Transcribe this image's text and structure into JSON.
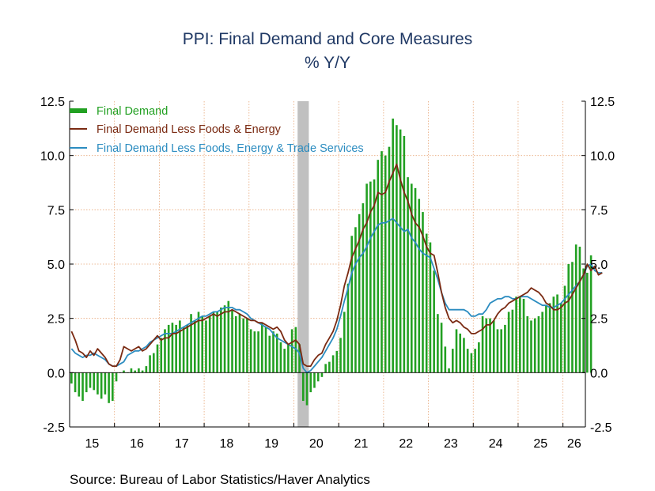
{
  "chart_data": {
    "type": "bar",
    "title": "PPI: Final Demand and Core Measures",
    "subtitle": "% Y/Y",
    "source": "Source:  Bureau of Labor Statistics/Haver Analytics",
    "ylim": [
      -2.5,
      12.5
    ],
    "yticks": [
      "-2.5",
      "0.0",
      "2.5",
      "5.0",
      "7.5",
      "10.0",
      "12.5"
    ],
    "ytick_values": [
      -2.5,
      0,
      2.5,
      5,
      7.5,
      10,
      12.5
    ],
    "x_tick_labels": [
      "15",
      "16",
      "17",
      "18",
      "19",
      "20",
      "21",
      "22",
      "23",
      "24",
      "25",
      "26"
    ],
    "x_start": "2015-01",
    "recession_shade": [
      "2020-02",
      "2020-04"
    ],
    "grid": true,
    "legend_position": "top-left",
    "colors": {
      "final_demand": "#22a022",
      "less_food_energy": "#7a2a12",
      "less_food_energy_trade": "#2b8cc0",
      "grid": "#e8a87a",
      "recession": "#c0c0c0",
      "title": "#1f3864"
    },
    "series": [
      {
        "name": "Final Demand",
        "kind": "bar",
        "values": [
          -0.5,
          -0.9,
          -1.1,
          -1.3,
          -0.9,
          -0.7,
          -0.8,
          -1.0,
          -1.2,
          -1.0,
          -1.4,
          -1.3,
          -0.4,
          0.0,
          0.1,
          0.0,
          0.2,
          0.1,
          0.2,
          0.1,
          0.3,
          0.8,
          0.9,
          1.3,
          1.6,
          2.0,
          2.2,
          2.3,
          2.2,
          2.4,
          2.1,
          2.2,
          2.7,
          2.4,
          2.8,
          2.6,
          2.4,
          2.6,
          2.8,
          2.8,
          3.0,
          3.1,
          3.3,
          2.9,
          2.6,
          2.7,
          2.5,
          2.5,
          2.0,
          1.9,
          1.9,
          2.3,
          2.1,
          1.7,
          1.9,
          1.8,
          1.4,
          1.1,
          1.3,
          2.0,
          2.1,
          1.3,
          -1.3,
          -1.5,
          -0.9,
          -0.7,
          -0.4,
          -0.2,
          0.4,
          0.5,
          0.8,
          1.0,
          1.6,
          2.8,
          4.1,
          6.3,
          6.7,
          7.3,
          7.8,
          8.7,
          8.8,
          8.9,
          9.8,
          10.2,
          10.0,
          10.4,
          11.7,
          11.4,
          11.2,
          10.9,
          9.0,
          8.7,
          8.5,
          8.0,
          7.4,
          6.4,
          6.0,
          4.7,
          2.7,
          2.3,
          1.2,
          0.2,
          1.1,
          2.0,
          1.8,
          1.6,
          1.1,
          0.9,
          1.1,
          1.4,
          2.6,
          2.5,
          2.5,
          2.4,
          2.0,
          2.0,
          2.2,
          2.8,
          2.9,
          3.5,
          3.5,
          3.4,
          2.6,
          2.4,
          2.5,
          2.6,
          2.8,
          3.1,
          3.2,
          3.5,
          3.6,
          3.2,
          4.0,
          5.0,
          5.1,
          5.9,
          5.8,
          4.8,
          4.6,
          5.4
        ]
      },
      {
        "name": "Final Demand Less Foods & Energy",
        "kind": "line",
        "values": [
          1.9,
          1.5,
          1.0,
          0.9,
          0.7,
          1.0,
          0.8,
          1.1,
          0.9,
          0.7,
          0.4,
          0.3,
          0.3,
          0.6,
          1.2,
          1.1,
          1.0,
          1.1,
          1.2,
          1.0,
          1.1,
          1.3,
          1.5,
          1.7,
          1.5,
          1.6,
          1.6,
          1.8,
          1.8,
          1.9,
          2.0,
          2.1,
          2.2,
          2.3,
          2.4,
          2.4,
          2.5,
          2.6,
          2.7,
          2.6,
          2.7,
          2.8,
          2.8,
          2.9,
          2.8,
          2.7,
          2.6,
          2.5,
          2.4,
          2.4,
          2.3,
          2.3,
          2.2,
          2.1,
          2.0,
          2.1,
          1.9,
          1.5,
          1.3,
          1.4,
          1.5,
          1.3,
          0.4,
          0.3,
          0.3,
          0.6,
          0.8,
          0.9,
          1.3,
          1.6,
          1.9,
          2.4,
          3.1,
          4.0,
          4.6,
          5.3,
          5.7,
          6.1,
          6.6,
          6.9,
          7.4,
          7.7,
          8.3,
          8.2,
          8.3,
          8.8,
          9.2,
          9.6,
          8.9,
          8.3,
          7.9,
          7.3,
          6.9,
          6.7,
          6.3,
          5.8,
          5.5,
          5.4,
          4.6,
          3.7,
          3.0,
          2.5,
          2.3,
          2.4,
          2.3,
          2.1,
          2.0,
          1.8,
          1.8,
          1.9,
          2.0,
          2.2,
          2.2,
          2.4,
          2.7,
          2.9,
          3.0,
          3.2,
          3.3,
          3.4,
          3.5,
          3.6,
          3.7,
          3.9,
          3.8,
          3.7,
          3.5,
          3.2,
          3.1,
          2.9,
          2.9,
          3.0,
          3.2,
          3.3,
          3.6,
          3.9,
          4.2,
          4.5,
          5.0,
          4.7,
          4.9,
          4.5,
          4.6
        ]
      },
      {
        "name": "Final Demand Less Foods, Energy & Trade Services",
        "kind": "line",
        "values": [
          1.1,
          0.9,
          0.8,
          0.7,
          0.8,
          0.8,
          0.9,
          0.8,
          0.7,
          0.6,
          0.4,
          0.3,
          0.3,
          0.4,
          0.5,
          0.8,
          0.9,
          1.0,
          1.0,
          1.1,
          1.2,
          1.4,
          1.5,
          1.6,
          1.7,
          1.8,
          1.8,
          1.8,
          1.9,
          2.0,
          2.1,
          2.2,
          2.3,
          2.4,
          2.5,
          2.6,
          2.6,
          2.7,
          2.8,
          2.8,
          2.9,
          3.0,
          3.0,
          3.0,
          2.9,
          2.9,
          2.8,
          2.7,
          2.5,
          2.4,
          2.3,
          2.2,
          2.1,
          2.0,
          1.8,
          1.6,
          1.5,
          1.4,
          1.3,
          1.2,
          1.1,
          0.9,
          0.2,
          0.0,
          0.1,
          0.3,
          0.5,
          0.7,
          1.0,
          1.3,
          1.6,
          2.0,
          2.6,
          3.3,
          3.9,
          4.6,
          5.0,
          5.3,
          5.5,
          5.8,
          6.2,
          6.5,
          6.8,
          6.9,
          6.9,
          7.0,
          7.1,
          6.9,
          6.7,
          6.5,
          6.6,
          6.2,
          6.0,
          5.7,
          5.5,
          5.4,
          5.3,
          4.8,
          4.3,
          3.7,
          3.2,
          2.9,
          2.9,
          2.9,
          2.9,
          2.9,
          2.8,
          2.6,
          2.6,
          2.7,
          2.7,
          2.9,
          3.2,
          3.3,
          3.4,
          3.4,
          3.5,
          3.5,
          3.4,
          3.4,
          3.5,
          3.5,
          3.5,
          3.4,
          3.3,
          3.2,
          3.1,
          3.1,
          3.0,
          3.0,
          3.1,
          3.2,
          3.4,
          3.6,
          3.8,
          4.0,
          4.2,
          4.5,
          4.9,
          5.0,
          4.7,
          4.6,
          4.6
        ]
      }
    ]
  }
}
